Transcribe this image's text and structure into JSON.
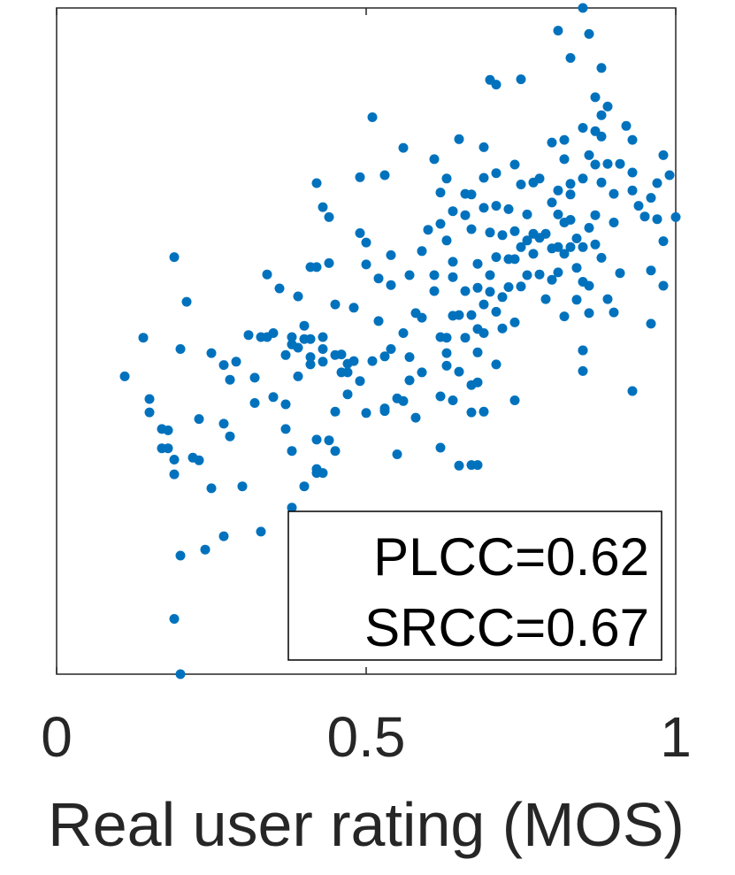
{
  "chart_data": {
    "type": "scatter",
    "xlabel": "Real user rating (MOS)",
    "ylabel": "",
    "xlim": [
      0,
      1
    ],
    "ylim": [
      0,
      1
    ],
    "x_ticks": [
      0,
      0.5,
      1
    ],
    "x_tick_labels": [
      "0",
      "0.5",
      "1"
    ],
    "y_ticks": [],
    "grid": false,
    "marker_color": "#0072BD",
    "legend_placement": "bottom-right",
    "annotations": [
      "PLCC=0.62",
      "SRCC=0.67"
    ],
    "points": [
      [
        0.11,
        0.447
      ],
      [
        0.14,
        0.505
      ],
      [
        0.15,
        0.413
      ],
      [
        0.15,
        0.393
      ],
      [
        0.17,
        0.368
      ],
      [
        0.17,
        0.339
      ],
      [
        0.18,
        0.366
      ],
      [
        0.18,
        0.339
      ],
      [
        0.19,
        0.322
      ],
      [
        0.19,
        0.3
      ],
      [
        0.19,
        0.626
      ],
      [
        0.2,
        0.488
      ],
      [
        0.21,
        0.559
      ],
      [
        0.2,
        0.178
      ],
      [
        0.19,
        0.083
      ],
      [
        0.2,
        0.0
      ],
      [
        0.22,
        0.325
      ],
      [
        0.23,
        0.321
      ],
      [
        0.23,
        0.383
      ],
      [
        0.24,
        0.187
      ],
      [
        0.25,
        0.482
      ],
      [
        0.25,
        0.279
      ],
      [
        0.27,
        0.207
      ],
      [
        0.27,
        0.464
      ],
      [
        0.27,
        0.376
      ],
      [
        0.28,
        0.357
      ],
      [
        0.28,
        0.442
      ],
      [
        0.29,
        0.469
      ],
      [
        0.3,
        0.282
      ],
      [
        0.31,
        0.509
      ],
      [
        0.32,
        0.407
      ],
      [
        0.32,
        0.445
      ],
      [
        0.33,
        0.506
      ],
      [
        0.34,
        0.506
      ],
      [
        0.33,
        0.214
      ],
      [
        0.34,
        0.6
      ],
      [
        0.35,
        0.512
      ],
      [
        0.35,
        0.416
      ],
      [
        0.36,
        0.579
      ],
      [
        0.37,
        0.479
      ],
      [
        0.37,
        0.405
      ],
      [
        0.37,
        0.368
      ],
      [
        0.38,
        0.506
      ],
      [
        0.38,
        0.495
      ],
      [
        0.38,
        0.335
      ],
      [
        0.38,
        0.25
      ],
      [
        0.39,
        0.567
      ],
      [
        0.39,
        0.49
      ],
      [
        0.39,
        0.447
      ],
      [
        0.4,
        0.523
      ],
      [
        0.4,
        0.503
      ],
      [
        0.4,
        0.282
      ],
      [
        0.41,
        0.611
      ],
      [
        0.41,
        0.503
      ],
      [
        0.41,
        0.476
      ],
      [
        0.41,
        0.465
      ],
      [
        0.42,
        0.611
      ],
      [
        0.42,
        0.352
      ],
      [
        0.42,
        0.308
      ],
      [
        0.42,
        0.302
      ],
      [
        0.42,
        0.737
      ],
      [
        0.43,
        0.701
      ],
      [
        0.43,
        0.506
      ],
      [
        0.43,
        0.488
      ],
      [
        0.43,
        0.469
      ],
      [
        0.43,
        0.302
      ],
      [
        0.42,
        0.13
      ],
      [
        0.44,
        0.686
      ],
      [
        0.44,
        0.351
      ],
      [
        0.44,
        0.617
      ],
      [
        0.45,
        0.555
      ],
      [
        0.45,
        0.479
      ],
      [
        0.45,
        0.394
      ],
      [
        0.45,
        0.335
      ],
      [
        0.46,
        0.48
      ],
      [
        0.46,
        0.453
      ],
      [
        0.47,
        0.453
      ],
      [
        0.47,
        0.42
      ],
      [
        0.47,
        0.466
      ],
      [
        0.48,
        0.55
      ],
      [
        0.48,
        0.47
      ],
      [
        0.49,
        0.746
      ],
      [
        0.49,
        0.662
      ],
      [
        0.49,
        0.44
      ],
      [
        0.5,
        0.648
      ],
      [
        0.5,
        0.615
      ],
      [
        0.5,
        0.392
      ],
      [
        0.51,
        0.836
      ],
      [
        0.51,
        0.47
      ],
      [
        0.52,
        0.594
      ],
      [
        0.52,
        0.53
      ],
      [
        0.53,
        0.477
      ],
      [
        0.53,
        0.395
      ],
      [
        0.53,
        0.399
      ],
      [
        0.53,
        0.749
      ],
      [
        0.54,
        0.629
      ],
      [
        0.54,
        0.584
      ],
      [
        0.54,
        0.488
      ],
      [
        0.55,
        0.33
      ],
      [
        0.55,
        0.414
      ],
      [
        0.56,
        0.512
      ],
      [
        0.56,
        0.41
      ],
      [
        0.56,
        0.79
      ],
      [
        0.57,
        0.599
      ],
      [
        0.57,
        0.476
      ],
      [
        0.57,
        0.441
      ],
      [
        0.58,
        0.542
      ],
      [
        0.58,
        0.385
      ],
      [
        0.59,
        0.453
      ],
      [
        0.59,
        0.535
      ],
      [
        0.59,
        0.635
      ],
      [
        0.6,
        0.667
      ],
      [
        0.61,
        0.773
      ],
      [
        0.61,
        0.599
      ],
      [
        0.61,
        0.575
      ],
      [
        0.62,
        0.723
      ],
      [
        0.62,
        0.676
      ],
      [
        0.62,
        0.506
      ],
      [
        0.62,
        0.417
      ],
      [
        0.62,
        0.34
      ],
      [
        0.63,
        0.744
      ],
      [
        0.63,
        0.651
      ],
      [
        0.63,
        0.505
      ],
      [
        0.63,
        0.482
      ],
      [
        0.63,
        0.463
      ],
      [
        0.64,
        0.695
      ],
      [
        0.64,
        0.619
      ],
      [
        0.64,
        0.596
      ],
      [
        0.64,
        0.538
      ],
      [
        0.64,
        0.411
      ],
      [
        0.65,
        0.803
      ],
      [
        0.65,
        0.539
      ],
      [
        0.65,
        0.454
      ],
      [
        0.65,
        0.313
      ],
      [
        0.66,
        0.721
      ],
      [
        0.66,
        0.689
      ],
      [
        0.66,
        0.575
      ],
      [
        0.66,
        0.505
      ],
      [
        0.67,
        0.72
      ],
      [
        0.67,
        0.668
      ],
      [
        0.67,
        0.539
      ],
      [
        0.67,
        0.434
      ],
      [
        0.67,
        0.393
      ],
      [
        0.67,
        0.314
      ],
      [
        0.68,
        0.616
      ],
      [
        0.68,
        0.58
      ],
      [
        0.68,
        0.518
      ],
      [
        0.68,
        0.483
      ],
      [
        0.68,
        0.438
      ],
      [
        0.68,
        0.314
      ],
      [
        0.69,
        0.791
      ],
      [
        0.69,
        0.745
      ],
      [
        0.69,
        0.7
      ],
      [
        0.69,
        0.555
      ],
      [
        0.69,
        0.512
      ],
      [
        0.69,
        0.394
      ],
      [
        0.7,
        0.892
      ],
      [
        0.7,
        0.663
      ],
      [
        0.7,
        0.599
      ],
      [
        0.7,
        0.574
      ],
      [
        0.71,
        0.885
      ],
      [
        0.71,
        0.752
      ],
      [
        0.71,
        0.703
      ],
      [
        0.71,
        0.626
      ],
      [
        0.71,
        0.544
      ],
      [
        0.71,
        0.465
      ],
      [
        0.72,
        0.659
      ],
      [
        0.72,
        0.566
      ],
      [
        0.72,
        0.519
      ],
      [
        0.73,
        0.698
      ],
      [
        0.73,
        0.623
      ],
      [
        0.73,
        0.581
      ],
      [
        0.74,
        0.765
      ],
      [
        0.74,
        0.665
      ],
      [
        0.74,
        0.623
      ],
      [
        0.74,
        0.528
      ],
      [
        0.74,
        0.411
      ],
      [
        0.75,
        0.893
      ],
      [
        0.75,
        0.735
      ],
      [
        0.75,
        0.641
      ],
      [
        0.75,
        0.582
      ],
      [
        0.76,
        0.69
      ],
      [
        0.76,
        0.651
      ],
      [
        0.76,
        0.599
      ],
      [
        0.77,
        0.738
      ],
      [
        0.77,
        0.661
      ],
      [
        0.77,
        0.631
      ],
      [
        0.78,
        0.744
      ],
      [
        0.78,
        0.655
      ],
      [
        0.78,
        0.6
      ],
      [
        0.79,
        0.661
      ],
      [
        0.79,
        0.563
      ],
      [
        0.8,
        0.798
      ],
      [
        0.8,
        0.708
      ],
      [
        0.8,
        0.639
      ],
      [
        0.8,
        0.592
      ],
      [
        0.81,
        0.726
      ],
      [
        0.81,
        0.69
      ],
      [
        0.81,
        0.641
      ],
      [
        0.81,
        0.603
      ],
      [
        0.81,
        0.966
      ],
      [
        0.82,
        0.802
      ],
      [
        0.82,
        0.773
      ],
      [
        0.82,
        0.678
      ],
      [
        0.82,
        0.537
      ],
      [
        0.82,
        0.631
      ],
      [
        0.83,
        0.925
      ],
      [
        0.83,
        0.736
      ],
      [
        0.83,
        0.72
      ],
      [
        0.83,
        0.682
      ],
      [
        0.83,
        0.641
      ],
      [
        0.84,
        0.654
      ],
      [
        0.84,
        0.61
      ],
      [
        0.84,
        0.562
      ],
      [
        0.85,
        1.0
      ],
      [
        0.85,
        0.82
      ],
      [
        0.85,
        0.744
      ],
      [
        0.85,
        0.641
      ],
      [
        0.85,
        0.589
      ],
      [
        0.85,
        0.486
      ],
      [
        0.85,
        0.455
      ],
      [
        0.85,
        0.486
      ],
      [
        0.86,
        0.961
      ],
      [
        0.86,
        0.779
      ],
      [
        0.86,
        0.67
      ],
      [
        0.86,
        0.583
      ],
      [
        0.86,
        0.542
      ],
      [
        0.87,
        0.866
      ],
      [
        0.87,
        0.815
      ],
      [
        0.87,
        0.765
      ],
      [
        0.87,
        0.689
      ],
      [
        0.87,
        0.645
      ],
      [
        0.88,
        0.91
      ],
      [
        0.88,
        0.839
      ],
      [
        0.88,
        0.807
      ],
      [
        0.88,
        0.738
      ],
      [
        0.88,
        0.625
      ],
      [
        0.89,
        0.852
      ],
      [
        0.89,
        0.766
      ],
      [
        0.89,
        0.563
      ],
      [
        0.9,
        0.721
      ],
      [
        0.9,
        0.678
      ],
      [
        0.9,
        0.543
      ],
      [
        0.91,
        0.766
      ],
      [
        0.91,
        0.602
      ],
      [
        0.92,
        0.823
      ],
      [
        0.93,
        0.726
      ],
      [
        0.93,
        0.425
      ],
      [
        0.93,
        0.753
      ],
      [
        0.93,
        0.802
      ],
      [
        0.94,
        0.703
      ],
      [
        0.95,
        0.687
      ],
      [
        0.96,
        0.606
      ],
      [
        0.96,
        0.526
      ],
      [
        0.96,
        0.715
      ],
      [
        0.97,
        0.737
      ],
      [
        0.97,
        0.683
      ],
      [
        0.98,
        0.779
      ],
      [
        0.98,
        0.65
      ],
      [
        0.98,
        0.583
      ],
      [
        0.99,
        0.749
      ],
      [
        1.0,
        0.686
      ]
    ]
  }
}
